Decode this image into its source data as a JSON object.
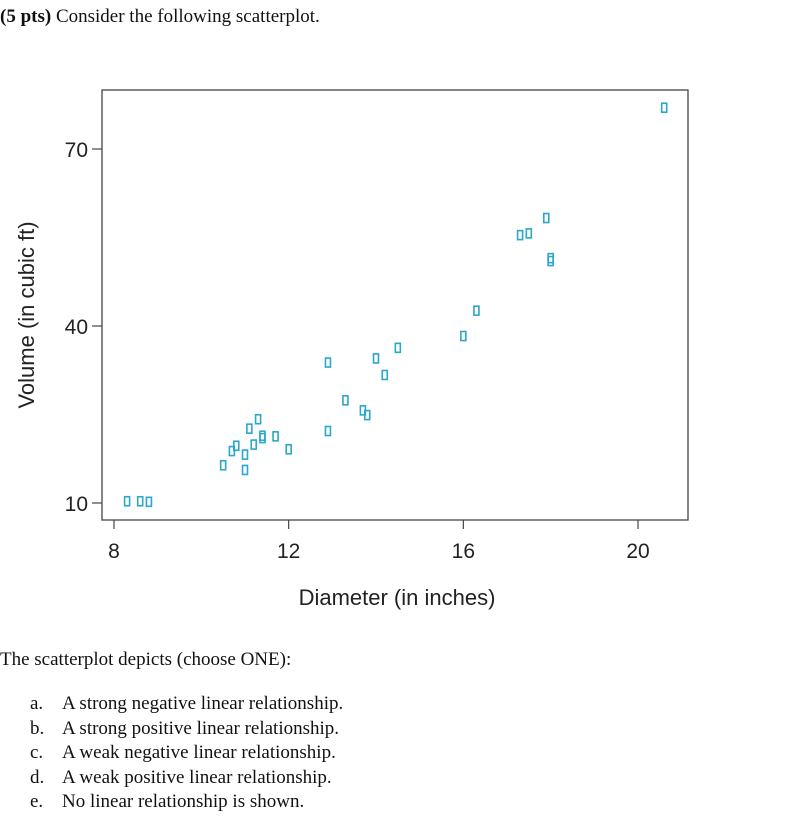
{
  "question": {
    "points_label": "(5 pts)",
    "text": "Consider the following scatterplot."
  },
  "chart_data": {
    "type": "scatter",
    "xlabel": "Diameter (in inches)",
    "ylabel": "Volume (in cubic ft)",
    "xlim": [
      7.8,
      20.5
    ],
    "ylim": [
      7,
      77
    ],
    "xticks": [
      8,
      12,
      16,
      20
    ],
    "yticks": [
      10,
      40,
      70
    ],
    "grid": false,
    "marker": "hollow-rectangle",
    "marker_color": "#2aa7c9",
    "points": [
      {
        "x": 8.3,
        "y": 10.3
      },
      {
        "x": 8.6,
        "y": 10.3
      },
      {
        "x": 8.8,
        "y": 10.2
      },
      {
        "x": 10.5,
        "y": 16.4
      },
      {
        "x": 10.7,
        "y": 18.8
      },
      {
        "x": 10.8,
        "y": 19.7
      },
      {
        "x": 11.0,
        "y": 15.6
      },
      {
        "x": 11.0,
        "y": 18.2
      },
      {
        "x": 11.1,
        "y": 22.6
      },
      {
        "x": 11.2,
        "y": 19.9
      },
      {
        "x": 11.3,
        "y": 24.2
      },
      {
        "x": 11.4,
        "y": 21.0
      },
      {
        "x": 11.4,
        "y": 21.4
      },
      {
        "x": 11.7,
        "y": 21.3
      },
      {
        "x": 12.0,
        "y": 19.1
      },
      {
        "x": 12.9,
        "y": 22.2
      },
      {
        "x": 12.9,
        "y": 33.8
      },
      {
        "x": 13.3,
        "y": 27.4
      },
      {
        "x": 13.7,
        "y": 25.7
      },
      {
        "x": 13.8,
        "y": 24.9
      },
      {
        "x": 14.0,
        "y": 34.5
      },
      {
        "x": 14.2,
        "y": 31.7
      },
      {
        "x": 14.5,
        "y": 36.3
      },
      {
        "x": 16.0,
        "y": 38.3
      },
      {
        "x": 16.3,
        "y": 42.6
      },
      {
        "x": 17.3,
        "y": 55.4
      },
      {
        "x": 17.5,
        "y": 55.7
      },
      {
        "x": 17.9,
        "y": 58.3
      },
      {
        "x": 18.0,
        "y": 51.5
      },
      {
        "x": 18.0,
        "y": 51.0
      },
      {
        "x": 20.6,
        "y": 77.0
      }
    ]
  },
  "prompt": "The scatterplot depicts (choose ONE):",
  "options": [
    {
      "letter": "a.",
      "text": "A strong negative linear relationship."
    },
    {
      "letter": "b.",
      "text": "A strong positive linear relationship."
    },
    {
      "letter": "c.",
      "text": "A weak negative linear relationship."
    },
    {
      "letter": "d.",
      "text": "A weak positive linear relationship."
    },
    {
      "letter": "e.",
      "text": "No linear relationship is shown."
    }
  ]
}
